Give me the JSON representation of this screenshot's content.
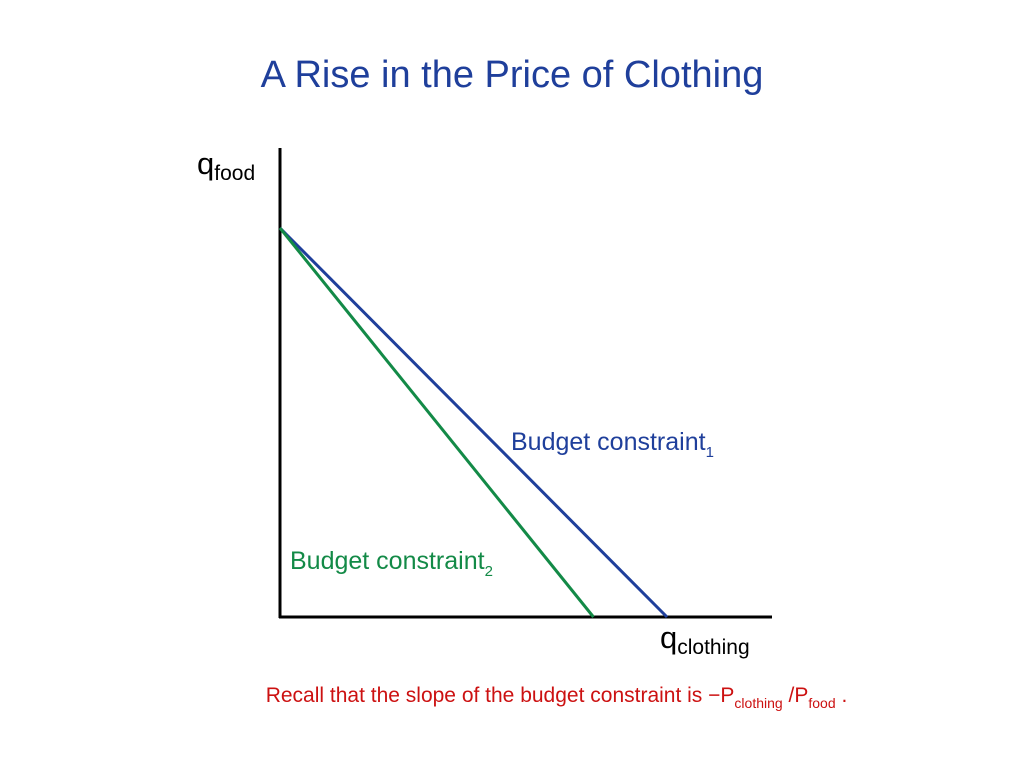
{
  "title": "A Rise in the Price of Clothing",
  "axes": {
    "y_label": "q",
    "y_label_sub": "food",
    "x_label": "q",
    "x_label_sub": "clothing"
  },
  "budget_constraints": [
    {
      "label": "Budget constraint",
      "label_sub": "1",
      "color": "#1f3f9b",
      "y_intercept": 1.0,
      "x_intercept": 1.0
    },
    {
      "label": "Budget constraint",
      "label_sub": "2",
      "color": "#138a47",
      "y_intercept": 1.0,
      "x_intercept": 0.81
    }
  ],
  "note": {
    "text_before": "Recall that the slope of the budget constraint is −P",
    "sub1": "clothing",
    "middle": " /P",
    "sub2": "food",
    "end": " ."
  }
}
